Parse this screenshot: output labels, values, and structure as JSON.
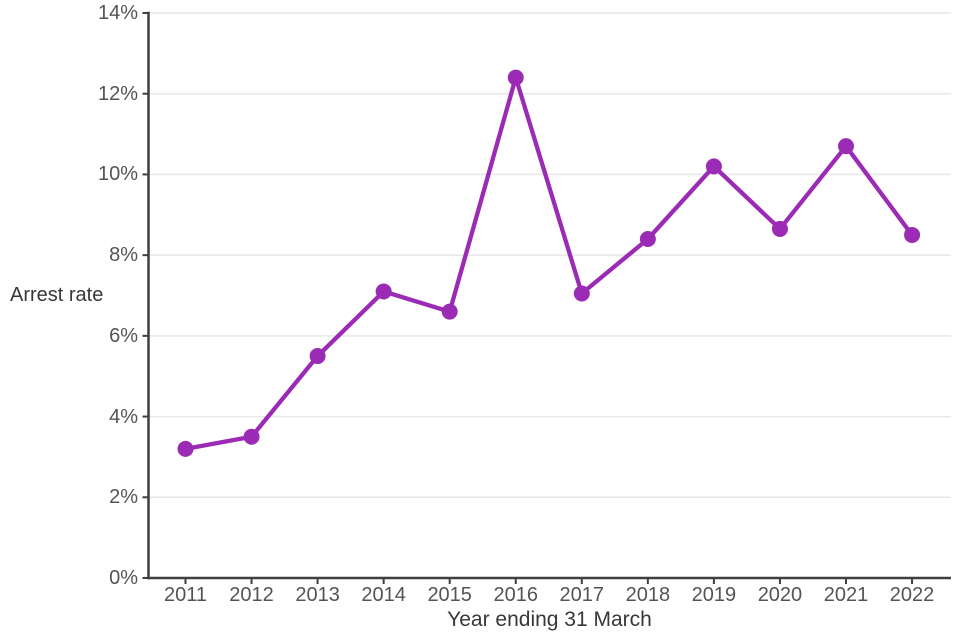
{
  "chart_data": {
    "type": "line",
    "title": "",
    "x": [
      "2011",
      "2012",
      "2013",
      "2014",
      "2015",
      "2016",
      "2017",
      "2018",
      "2019",
      "2020",
      "2021",
      "2022"
    ],
    "series": [
      {
        "name": "Arrest rate",
        "values": [
          3.2,
          3.5,
          5.5,
          7.1,
          6.6,
          12.4,
          7.05,
          8.4,
          10.2,
          8.65,
          10.7,
          8.5
        ]
      }
    ],
    "xlabel": "Year ending 31 March",
    "ylabel": "Arrest rate",
    "ylim": [
      0,
      14
    ],
    "yticks": [
      0,
      2,
      4,
      6,
      8,
      10,
      12,
      14
    ],
    "ytick_labels": [
      "0%",
      "2%",
      "4%",
      "6%",
      "8%",
      "10%",
      "12%",
      "14%"
    ],
    "grid": true,
    "legend": false,
    "colors": {
      "line": "#9b2bb5",
      "marker": "#9b2bb5",
      "axis": "#3f3f3f",
      "gridline": "#e7e7e7",
      "tick_label": "#545454",
      "axis_title": "#383838"
    }
  }
}
